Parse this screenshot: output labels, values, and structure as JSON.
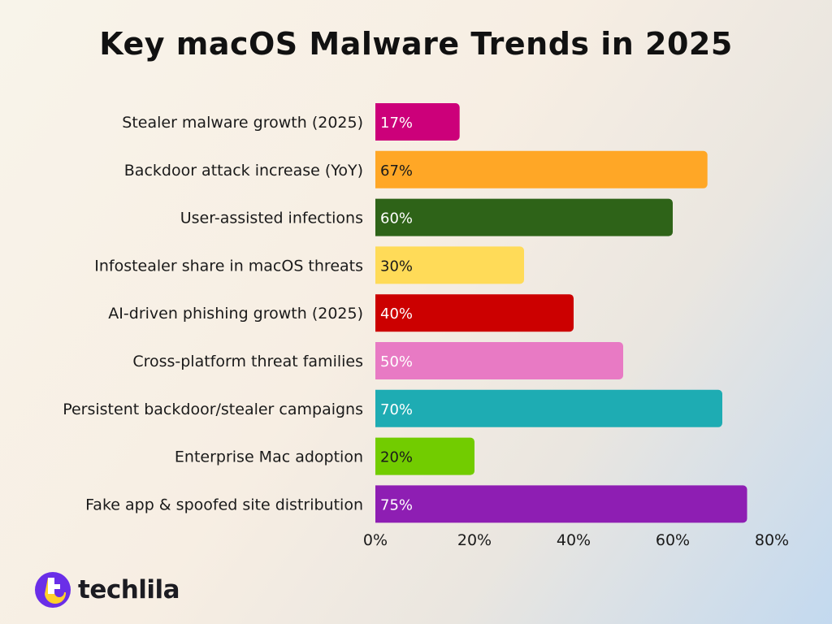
{
  "chart_data": {
    "type": "bar",
    "orientation": "horizontal",
    "title": "Key macOS Malware Trends in 2025",
    "categories": [
      "Stealer malware growth (2025)",
      "Backdoor attack increase (YoY)",
      "User-assisted infections",
      "Infostealer share in macOS threats",
      "AI-driven phishing growth (2025)",
      "Cross-platform threat families",
      "Persistent backdoor/stealer campaigns",
      "Enterprise Mac adoption",
      "Fake app & spoofed site distribution"
    ],
    "values": [
      17,
      67,
      60,
      30,
      40,
      50,
      70,
      20,
      75
    ],
    "data_labels": [
      "17%",
      "67%",
      "60%",
      "30%",
      "40%",
      "50%",
      "70%",
      "20%",
      "75%"
    ],
    "colors": [
      "#cc007a",
      "#ffa726",
      "#2e6318",
      "#ffdb58",
      "#cc0000",
      "#e87ac4",
      "#1eacb3",
      "#72cc00",
      "#8e1eb3"
    ],
    "label_colors": [
      "#ffffff",
      "#1a1a1a",
      "#ffffff",
      "#1a1a1a",
      "#ffffff",
      "#ffffff",
      "#ffffff",
      "#1a1a1a",
      "#ffffff"
    ],
    "xlim": [
      0,
      80
    ],
    "x_ticks": [
      "0%",
      "20%",
      "40%",
      "60%",
      "80%"
    ],
    "grid": false,
    "xlabel": "",
    "ylabel": ""
  },
  "brand": {
    "name": "techlila",
    "logo_colors": [
      "#6a2ee8",
      "#ffd12b"
    ]
  }
}
